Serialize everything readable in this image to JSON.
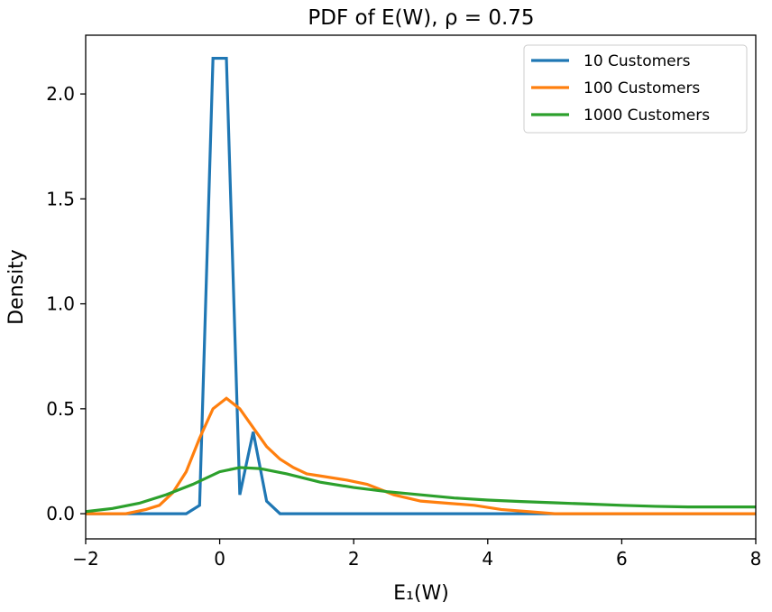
{
  "chart_data": {
    "type": "line",
    "title": "PDF of E(W), ρ = 0.75",
    "xlabel": "E₁(W)",
    "ylabel": "Density",
    "xlim": [
      -2,
      8
    ],
    "ylim": [
      -0.12,
      2.28
    ],
    "xticks": [
      -2,
      0,
      2,
      4,
      6,
      8
    ],
    "xtick_labels": [
      "−2",
      "0",
      "2",
      "4",
      "6",
      "8"
    ],
    "yticks": [
      0.0,
      0.5,
      1.0,
      1.5,
      2.0
    ],
    "ytick_labels": [
      "0.0",
      "0.5",
      "1.0",
      "1.5",
      "2.0"
    ],
    "grid": false,
    "legend_position": "top-right",
    "series": [
      {
        "name": "10 Customers",
        "color": "#1f77b4",
        "x": [
          -2.0,
          -0.5,
          -0.3,
          -0.1,
          0.1,
          0.3,
          0.5,
          0.7,
          0.9,
          8.0
        ],
        "y": [
          0.0,
          0.0,
          0.04,
          2.17,
          2.17,
          0.09,
          0.39,
          0.06,
          0.0,
          0.0
        ]
      },
      {
        "name": "100 Customers",
        "color": "#ff7f0e",
        "x": [
          -2.0,
          -1.4,
          -1.1,
          -0.9,
          -0.7,
          -0.5,
          -0.3,
          -0.1,
          0.1,
          0.3,
          0.5,
          0.7,
          0.9,
          1.1,
          1.3,
          1.5,
          1.9,
          2.2,
          2.6,
          3.0,
          3.4,
          3.8,
          4.2,
          4.6,
          5.0,
          8.0
        ],
        "y": [
          0.0,
          0.0,
          0.02,
          0.04,
          0.1,
          0.2,
          0.36,
          0.5,
          0.55,
          0.5,
          0.41,
          0.32,
          0.26,
          0.22,
          0.19,
          0.18,
          0.16,
          0.14,
          0.09,
          0.06,
          0.05,
          0.04,
          0.02,
          0.01,
          0.0,
          0.0
        ]
      },
      {
        "name": "1000 Customers",
        "color": "#2ca02c",
        "x": [
          -2.0,
          -1.6,
          -1.2,
          -0.8,
          -0.4,
          0.0,
          0.3,
          0.6,
          1.0,
          1.5,
          2.0,
          2.5,
          3.0,
          3.5,
          4.0,
          4.5,
          5.0,
          5.5,
          6.0,
          6.5,
          7.0,
          8.0
        ],
        "y": [
          0.01,
          0.025,
          0.05,
          0.09,
          0.14,
          0.2,
          0.22,
          0.215,
          0.19,
          0.15,
          0.125,
          0.105,
          0.09,
          0.075,
          0.065,
          0.058,
          0.052,
          0.046,
          0.04,
          0.035,
          0.032,
          0.032
        ]
      }
    ]
  }
}
